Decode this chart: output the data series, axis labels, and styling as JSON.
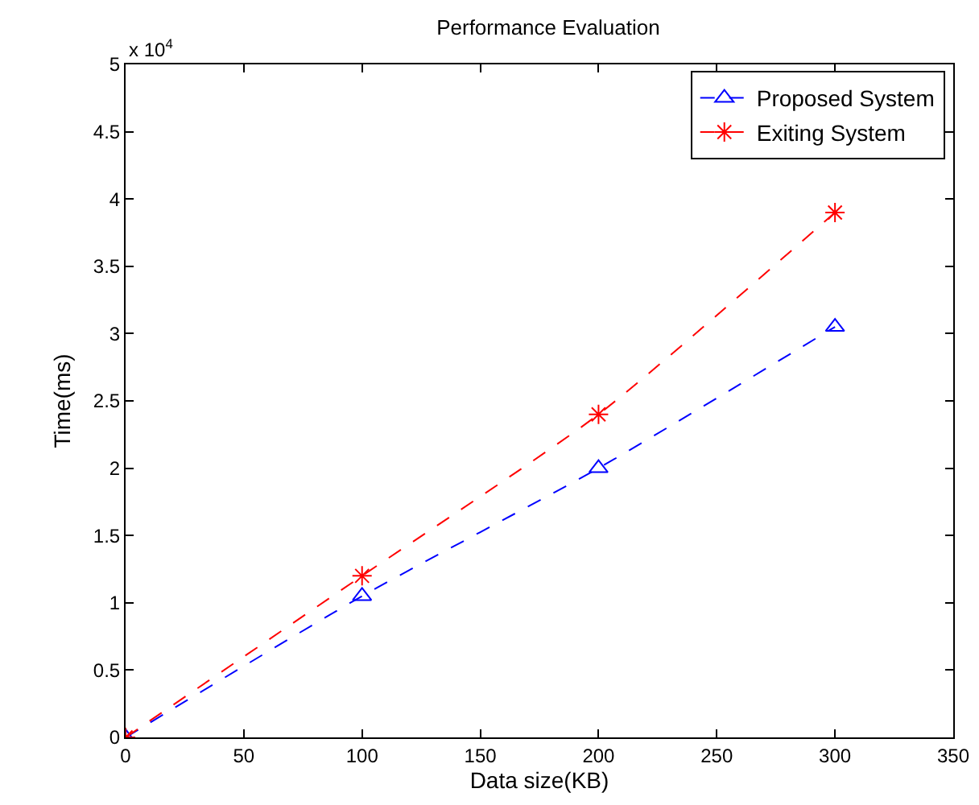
{
  "chart_data": {
    "type": "line",
    "title": "Performance Evaluation",
    "xlabel": "Data size(KB)",
    "ylabel": "Time(ms)",
    "annotations": [
      "x 10$^{4}$"
    ],
    "series": [
      {
        "name": "Proposed System",
        "color": "#0000ff",
        "marker": "triangle",
        "x": [
          0,
          100,
          200,
          300
        ],
        "values": [
          0,
          1.05,
          2,
          3.05
        ]
      },
      {
        "name": "Exiting System",
        "color": "#ff0000",
        "marker": "cross",
        "x": [
          0,
          100,
          200,
          300
        ],
        "values": [
          0,
          1.2,
          2.4,
          3.9
        ]
      }
    ],
    "xlim": [
      0,
      350
    ],
    "xticks": [
      0,
      50,
      100,
      150,
      200,
      250,
      300,
      350
    ],
    "ylim": [
      0,
      5
    ],
    "yticks": [
      0,
      0.5,
      1,
      1.5,
      2,
      2.5,
      3,
      3.5,
      4,
      4.5,
      5
    ],
    "grid": false,
    "legend": "top right",
    "line_style": "dashed"
  }
}
